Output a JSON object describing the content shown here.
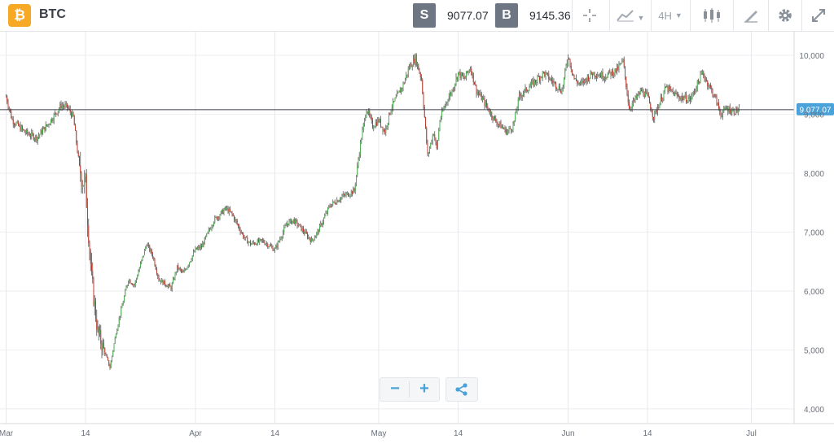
{
  "header": {
    "asset_icon_glyph": "₿",
    "asset_name": "BTC",
    "sell_tag": "S",
    "sell_price": "9077.07",
    "buy_tag": "B",
    "buy_price": "9145.36",
    "interval_label": "4H",
    "icons": [
      "crosshair-icon",
      "line-chart-icon",
      "candlestick-icon",
      "draw-tool-icon",
      "gear-icon",
      "expand-icon"
    ],
    "accent_color": "#f7a824"
  },
  "zoom": {
    "minus": "−",
    "plus": "+",
    "icons": [
      "zoom-out-icon",
      "zoom-in-icon",
      "share-icon"
    ]
  },
  "chart_data": {
    "type": "candlestick",
    "title": "",
    "xlabel": "",
    "ylabel": "",
    "interval": "4H",
    "y_axis_ticks": [
      4000,
      5000,
      6000,
      7000,
      8000,
      9000,
      10000
    ],
    "y_axis_tick_labels": [
      "4,000",
      "5,000",
      "6,000",
      "7,000",
      "8,000",
      "9,000",
      "10,000"
    ],
    "ylim": [
      3750,
      10400
    ],
    "x_axis_tick_labels": [
      "Mar",
      "14",
      "Apr",
      "14",
      "May",
      "14",
      "Jun",
      "14",
      "Jul"
    ],
    "x_axis_tick_days": [
      0,
      13,
      31,
      44,
      61,
      74,
      92,
      105,
      122
    ],
    "xlim_days": [
      -1,
      129
    ],
    "last_price": 9077.07,
    "last_price_label": "9,077.07",
    "up_color": "#4caf50",
    "down_color": "#c0392b",
    "grid": true,
    "close_path_days": [
      0,
      1,
      3,
      5,
      7,
      8,
      9,
      10,
      11,
      12,
      12.5,
      13,
      14,
      15,
      16,
      17,
      18,
      20,
      21,
      23,
      24,
      25,
      27,
      28,
      29,
      31,
      32,
      34,
      36,
      37,
      38,
      39,
      40,
      42,
      44,
      46,
      47,
      48,
      50,
      51,
      53,
      55,
      57,
      58,
      59,
      60,
      61,
      62,
      63,
      64,
      65,
      66,
      67,
      68,
      69,
      70,
      70.5,
      71,
      72,
      73,
      74,
      75,
      76,
      77,
      78,
      80,
      82,
      83,
      84,
      86,
      88,
      90,
      91,
      92,
      93,
      94,
      96,
      98,
      100,
      101,
      102,
      104,
      105,
      106,
      108,
      110,
      112,
      114,
      116,
      117,
      118,
      119,
      120
    ],
    "close_path_prices": [
      9300,
      8900,
      8700,
      8600,
      8850,
      9000,
      9150,
      9120,
      8950,
      8100,
      7900,
      7800,
      6200,
      5300,
      5000,
      4700,
      5300,
      6200,
      6100,
      6800,
      6600,
      6200,
      6050,
      6400,
      6300,
      6700,
      6750,
      7200,
      7400,
      7300,
      7100,
      6900,
      6800,
      6850,
      6700,
      7150,
      7200,
      7100,
      6850,
      7000,
      7450,
      7600,
      7700,
      8500,
      9100,
      8800,
      8900,
      8700,
      9100,
      9300,
      9500,
      9800,
      9950,
      9600,
      8300,
      8700,
      8400,
      8900,
      9200,
      9400,
      9700,
      9600,
      9800,
      9400,
      9250,
      8900,
      8700,
      8800,
      9300,
      9500,
      9700,
      9500,
      9400,
      10000,
      9600,
      9500,
      9700,
      9650,
      9750,
      9900,
      9100,
      9400,
      9300,
      8950,
      9450,
      9300,
      9250,
      9700,
      9300,
      9000,
      9100,
      9050,
      9077.07
    ]
  }
}
